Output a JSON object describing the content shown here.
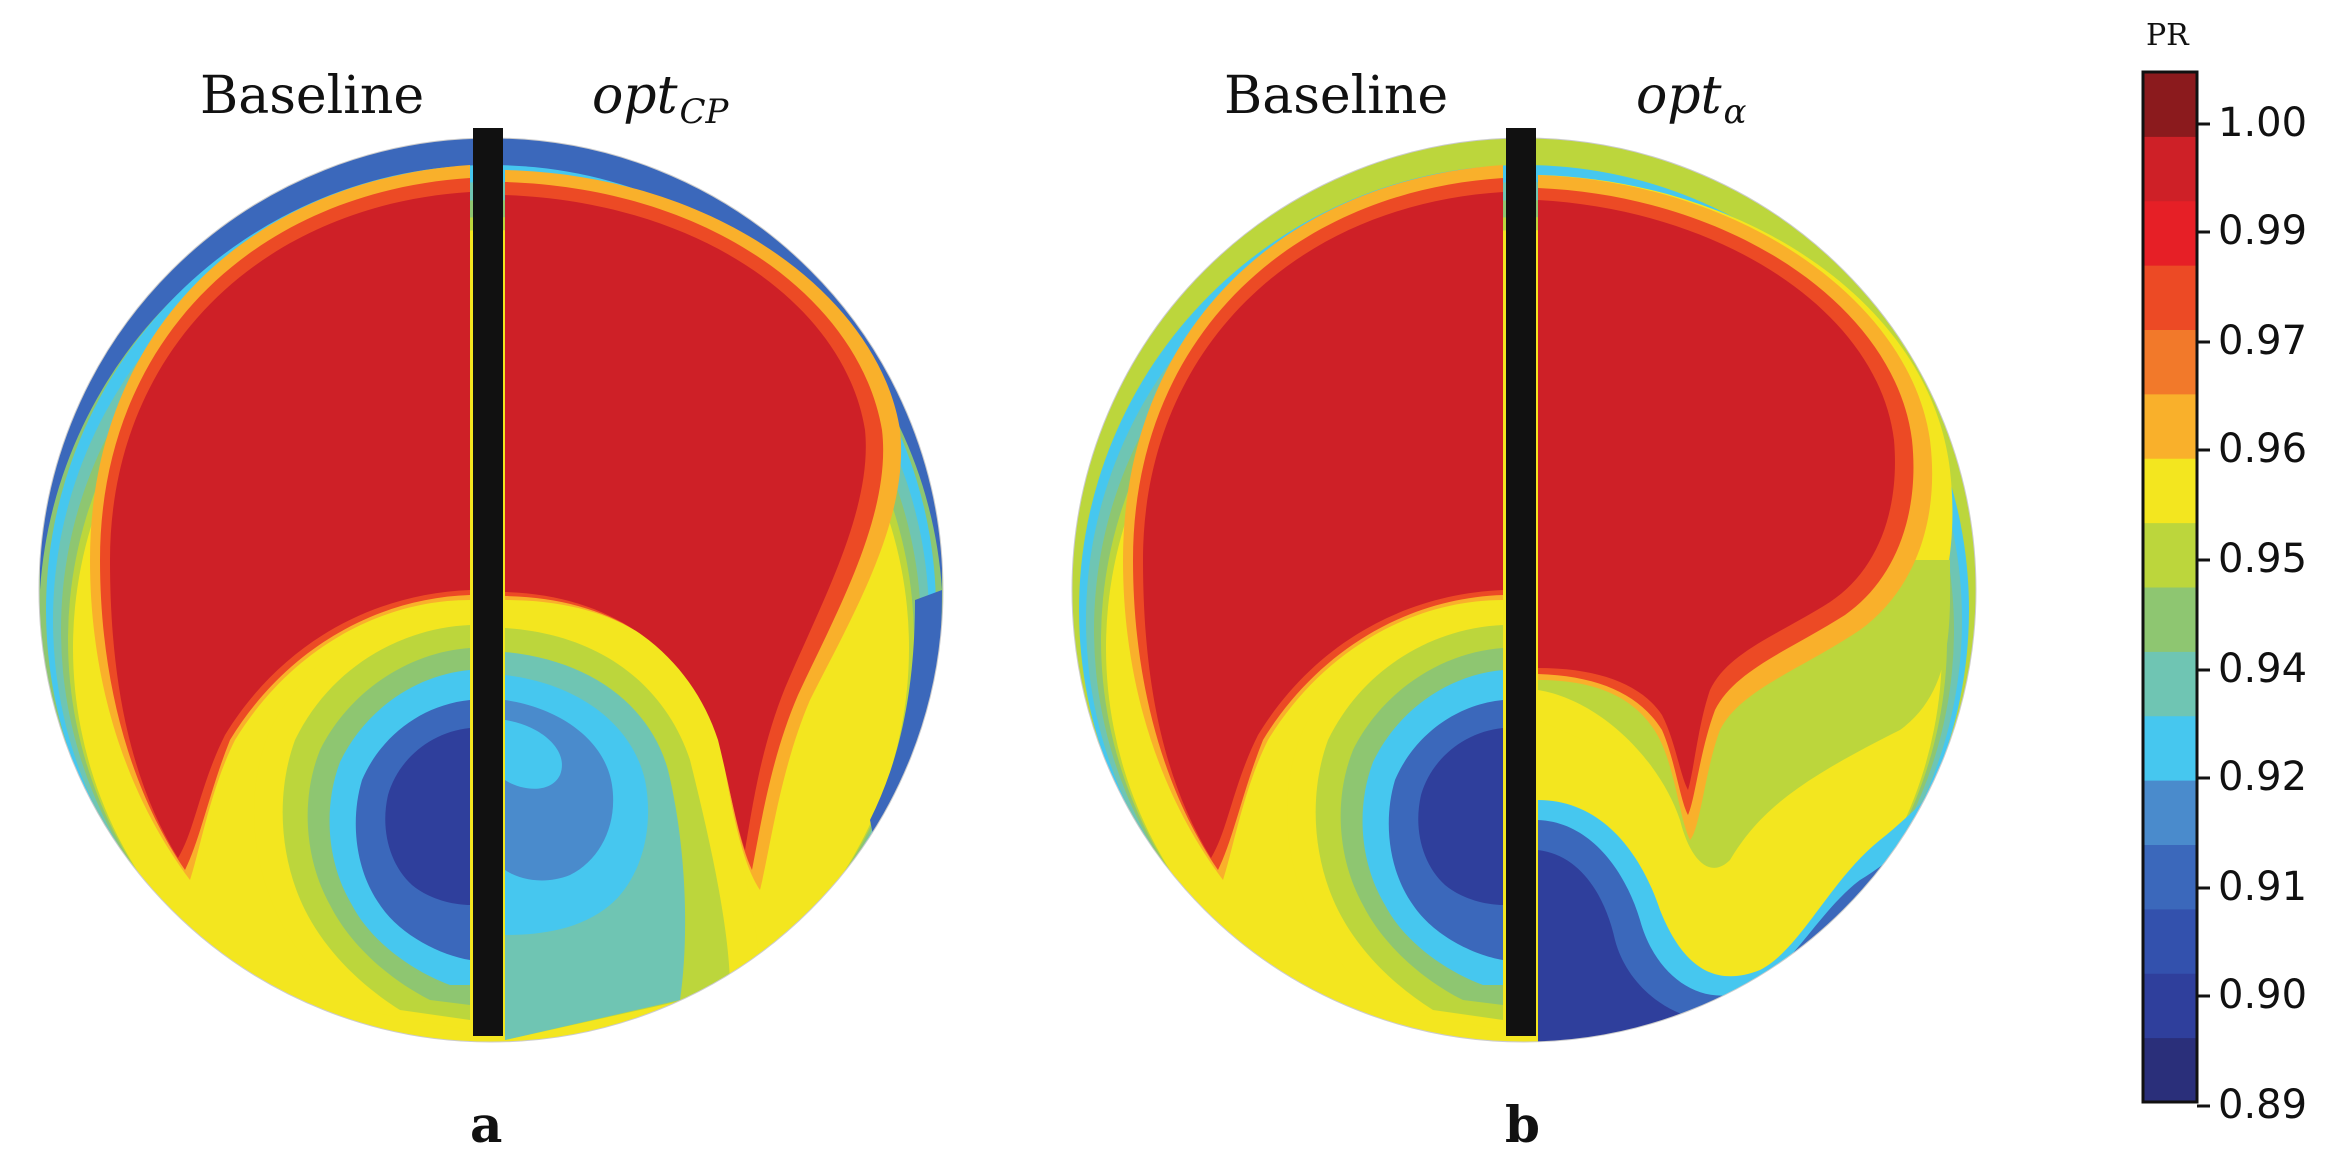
{
  "panels": [
    {
      "letter": "a",
      "left_label": "Baseline",
      "right_label_main": "opt",
      "right_label_sub": "CP"
    },
    {
      "letter": "b",
      "left_label": "Baseline",
      "right_label_main": "opt",
      "right_label_sub": "α"
    }
  ],
  "colorbar": {
    "title": "PR",
    "ticks": [
      "1.00",
      "0.99",
      "0.97",
      "0.96",
      "0.95",
      "0.94",
      "0.92",
      "0.91",
      "0.90",
      "0.89"
    ],
    "levels": [
      "#2a2f7a",
      "#2f3f9c",
      "#3351ad",
      "#3b68bb",
      "#4a8bcc",
      "#46c7ef",
      "#6fc5b3",
      "#8ec671",
      "#bcd63c",
      "#f3e61f",
      "#f9b02b",
      "#f2792a",
      "#ec4a25",
      "#e61f26",
      "#ce2027",
      "#8b1a1d"
    ]
  },
  "colors": {
    "red": "#ce2027",
    "darkblue": "#2f3f9c",
    "midblue": "#3b68bb",
    "cyan": "#46c7ef",
    "teal": "#6fc5b3",
    "green": "#8ec671",
    "yellowgreen": "#bcd63c",
    "yellow": "#f3e61f",
    "orange": "#f9b02b",
    "divider": "#111111"
  }
}
